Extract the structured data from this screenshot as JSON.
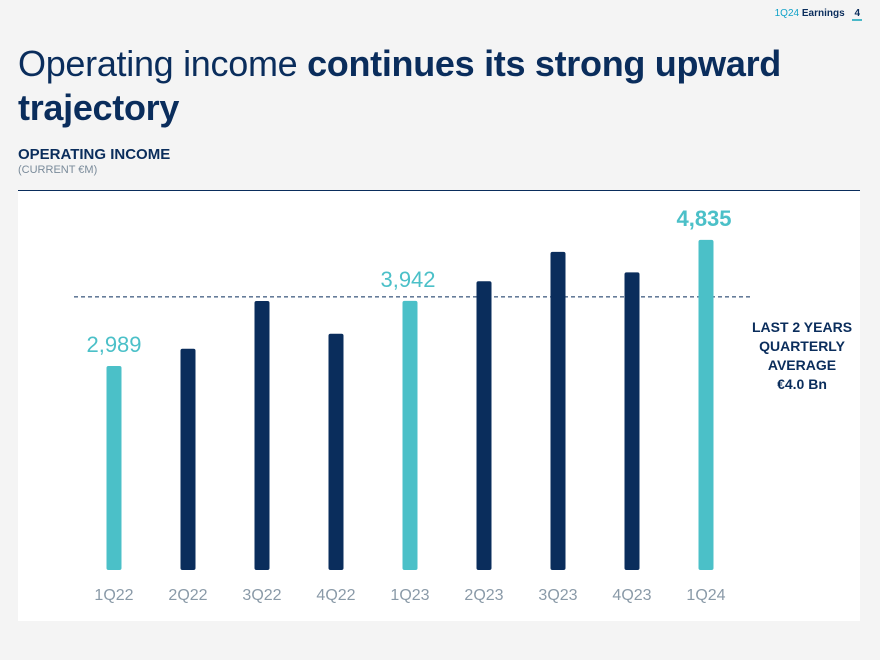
{
  "header": {
    "quarter_label": "1Q24",
    "earnings_label": "Earnings",
    "page_number": "4"
  },
  "title": {
    "light": "Operating income ",
    "bold": "continues its strong upward trajectory"
  },
  "colors": {
    "navy": "#0a2d5c",
    "teal": "#4bc0c8"
  },
  "chart_data": {
    "type": "bar",
    "title": "OPERATING INCOME",
    "subtitle": "(CURRENT €M)",
    "xlabel": "",
    "ylabel": "",
    "categories": [
      "1Q22",
      "2Q22",
      "3Q22",
      "4Q22",
      "1Q23",
      "2Q23",
      "3Q23",
      "4Q23",
      "1Q24"
    ],
    "values": [
      2989,
      3240,
      3940,
      3460,
      3942,
      4230,
      4660,
      4360,
      4835
    ],
    "highlight": [
      true,
      false,
      false,
      false,
      true,
      false,
      false,
      false,
      true
    ],
    "data_labels": [
      "2,989",
      "",
      "",
      "",
      "3,942",
      "",
      "",
      "",
      "4,835"
    ],
    "ylim": [
      0,
      5200
    ],
    "reference_line": {
      "value": 4000,
      "label_lines": [
        "LAST 2 YEARS",
        "QUARTERLY",
        "AVERAGE",
        "€4.0 Bn"
      ]
    }
  }
}
